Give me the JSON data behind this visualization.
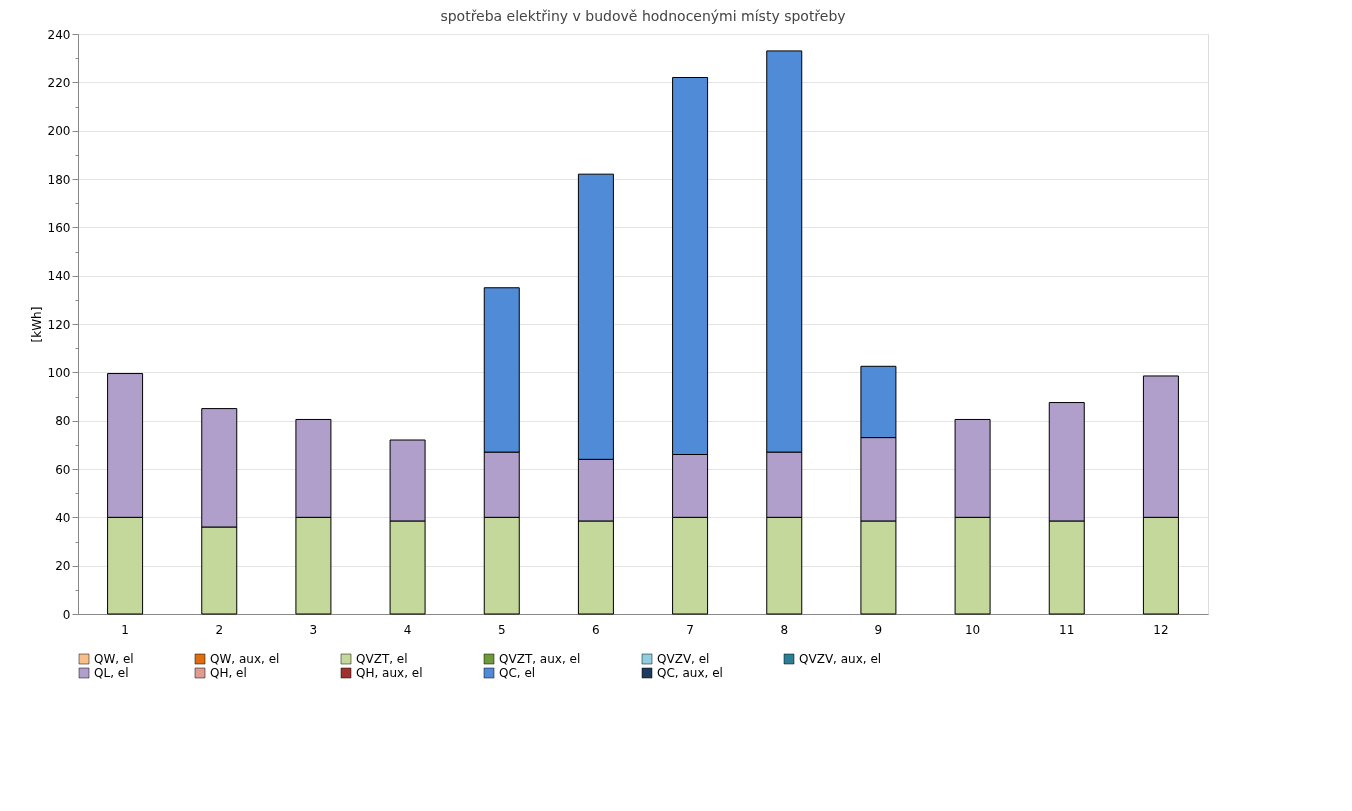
{
  "chart_data": {
    "type": "bar",
    "title": "spotřeba elektřiny v budově hodnocenými místy spotřeby",
    "ylabel": "[kWh]",
    "categories": [
      "1",
      "2",
      "3",
      "4",
      "5",
      "6",
      "7",
      "8",
      "9",
      "10",
      "11",
      "12"
    ],
    "stacked": true,
    "grid": "y",
    "legend": "bottom",
    "ylim": [
      0,
      240
    ],
    "yticks": [
      0,
      {
        "value": 10,
        "label": null
      },
      20,
      {
        "value": 30,
        "label": null
      },
      40,
      {
        "value": 50,
        "label": null
      },
      60,
      {
        "value": 70,
        "label": null
      },
      80,
      {
        "value": 90,
        "label": null
      },
      100,
      {
        "value": 110,
        "label": null
      },
      120,
      {
        "value": 130,
        "label": null
      },
      140,
      {
        "value": 150,
        "label": null
      },
      160,
      {
        "value": 170,
        "label": null
      },
      180,
      {
        "value": 190,
        "label": null
      },
      200,
      {
        "value": 210,
        "label": null
      },
      220,
      {
        "value": 230,
        "label": null
      },
      240
    ],
    "series": [
      {
        "name": "QW, el",
        "color": "#f9bf8a",
        "values": [
          0,
          0,
          0,
          0,
          0,
          0,
          0,
          0,
          0,
          0,
          0,
          0
        ]
      },
      {
        "name": "QW, aux, el",
        "color": "#e06c10",
        "values": [
          0,
          0,
          0,
          0,
          0,
          0,
          0,
          0,
          0,
          0,
          0,
          0
        ]
      },
      {
        "name": "QVZT, el",
        "color": "#c5d89b",
        "values": [
          40,
          36,
          40,
          38.5,
          40,
          38.5,
          40,
          40,
          38.5,
          40,
          38.5,
          40
        ]
      },
      {
        "name": "QVZT, aux, el",
        "color": "#6e9a3a",
        "values": [
          0,
          0,
          0,
          0,
          0,
          0,
          0,
          0,
          0,
          0,
          0,
          0
        ]
      },
      {
        "name": "QVZV, el",
        "color": "#8fcfe0",
        "values": [
          0,
          0,
          0,
          0,
          0,
          0,
          0,
          0,
          0,
          0,
          0,
          0
        ]
      },
      {
        "name": "QVZV, aux, el",
        "color": "#2a7f95",
        "values": [
          0,
          0,
          0,
          0,
          0,
          0,
          0,
          0,
          0,
          0,
          0,
          0
        ]
      },
      {
        "name": "QL, el",
        "color": "#b09fca",
        "values": [
          59.5,
          49,
          40.5,
          33.5,
          27,
          25.5,
          26,
          27,
          34.5,
          40.5,
          49,
          58.5
        ]
      },
      {
        "name": "QH, el",
        "color": "#e09a90",
        "values": [
          0,
          0,
          0,
          0,
          0,
          0,
          0,
          0,
          0,
          0,
          0,
          0
        ]
      },
      {
        "name": "QH, aux, el",
        "color": "#a03030",
        "values": [
          0,
          0,
          0,
          0,
          0,
          0,
          0,
          0,
          0,
          0,
          0,
          0
        ]
      },
      {
        "name": "QC, el",
        "color": "#4f8bd6",
        "values": [
          0,
          0,
          0,
          0,
          68,
          118,
          156,
          166,
          29.5,
          0,
          0,
          0
        ]
      },
      {
        "name": "QC, aux, el",
        "color": "#1f3a5f",
        "values": [
          0,
          0,
          0,
          0,
          0,
          0,
          0,
          0,
          0,
          0,
          0,
          0
        ]
      }
    ]
  }
}
